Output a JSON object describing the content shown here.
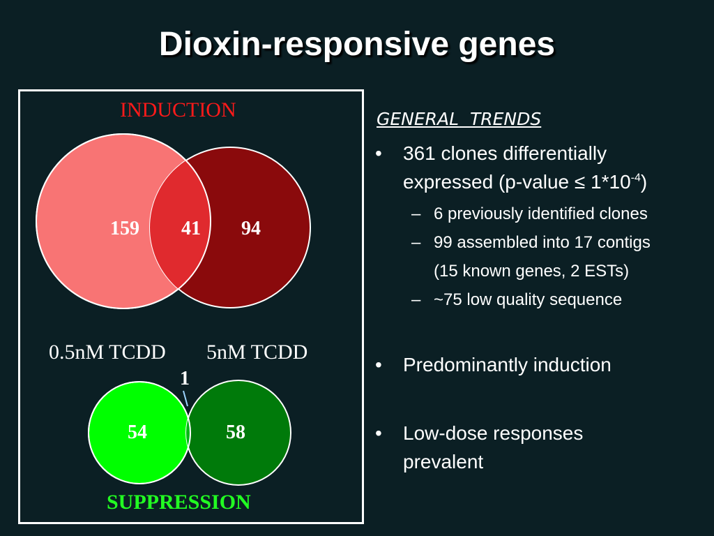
{
  "title": "Dioxin-responsive genes",
  "venn": {
    "induction": {
      "label": "INDUCTION",
      "left": 159,
      "overlap": 41,
      "right": 94
    },
    "dose_left": "0.5nM TCDD",
    "dose_right": "5nM TCDD",
    "suppression": {
      "label": "SUPPRESSION",
      "left": 54,
      "overlap": 1,
      "right": 58
    }
  },
  "trends": {
    "heading": [
      "GENERAL",
      "TRENDS"
    ],
    "bullet1": {
      "line1": "361 clones differentially",
      "line2": "expressed (p-value ≤ 1*10",
      "sup": "-4",
      "close": ")"
    },
    "sub": [
      "6 previously identified clones",
      "99 assembled into 17 contigs",
      "(15 known genes, 2 ESTs)",
      "~75 low quality sequence"
    ],
    "bullet2": "Predominantly induction",
    "bullet3": [
      "Low-dose responses",
      "prevalent"
    ]
  }
}
